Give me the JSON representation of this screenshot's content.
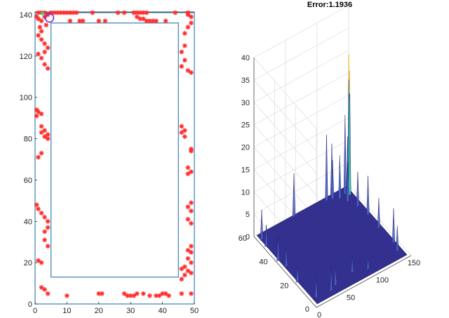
{
  "chart_data": [
    {
      "type": "scatter",
      "title": "",
      "xlabel": "",
      "ylabel": "",
      "xlim": [
        0,
        50
      ],
      "ylim": [
        0,
        140
      ],
      "xticks": [
        "0",
        "10",
        "20",
        "30",
        "40",
        "50"
      ],
      "yticks": [
        "0",
        "20",
        "40",
        "60",
        "80",
        "100",
        "120",
        "140"
      ],
      "grid": false,
      "outer_boundary": {
        "x": [
          0,
          50
        ],
        "y": [
          0,
          141
        ]
      },
      "inner_boundary": {
        "x": [
          5,
          45
        ],
        "y": [
          13,
          136
        ]
      },
      "colors": {
        "boundary": "#3a7fb4",
        "marker": "#ff2a2a",
        "estimate_circle": "#7a2bd6",
        "estimate_dot": "#2ee06a"
      },
      "estimate": {
        "x": 4.5,
        "y": 138.5
      },
      "particles": [
        [
          1,
          141
        ],
        [
          2,
          141
        ],
        [
          3,
          141
        ],
        [
          4,
          140
        ],
        [
          5,
          141
        ],
        [
          6,
          141
        ],
        [
          7,
          141
        ],
        [
          8,
          141
        ],
        [
          9,
          141
        ],
        [
          10,
          141
        ],
        [
          11,
          141
        ],
        [
          12,
          141
        ],
        [
          13,
          141
        ],
        [
          18,
          141
        ],
        [
          26,
          141
        ],
        [
          28,
          141
        ],
        [
          31,
          141
        ],
        [
          32,
          141
        ],
        [
          33,
          141
        ],
        [
          34,
          141
        ],
        [
          35,
          141
        ],
        [
          44,
          141
        ],
        [
          48,
          141
        ],
        [
          11,
          137
        ],
        [
          14,
          137
        ],
        [
          15,
          137
        ],
        [
          20,
          137
        ],
        [
          22,
          137
        ],
        [
          32,
          139
        ],
        [
          33,
          138
        ],
        [
          34,
          138
        ],
        [
          35,
          137
        ],
        [
          36,
          137
        ],
        [
          37,
          137
        ],
        [
          38,
          137
        ],
        [
          41,
          137
        ],
        [
          0.5,
          139
        ],
        [
          1,
          138
        ],
        [
          2,
          137
        ],
        [
          3,
          139
        ],
        [
          1.5,
          134
        ],
        [
          3.5,
          135
        ],
        [
          2,
          132
        ],
        [
          1,
          130
        ],
        [
          2,
          128
        ],
        [
          3,
          126
        ],
        [
          4,
          124
        ],
        [
          3,
          122
        ],
        [
          1,
          121
        ],
        [
          2,
          119
        ],
        [
          3,
          116
        ],
        [
          4,
          114
        ],
        [
          0.5,
          94
        ],
        [
          1,
          93
        ],
        [
          2,
          92
        ],
        [
          0.5,
          91
        ],
        [
          2,
          86
        ],
        [
          3,
          84
        ],
        [
          4,
          82
        ],
        [
          3,
          81
        ],
        [
          2,
          83
        ],
        [
          4,
          80
        ],
        [
          2,
          73
        ],
        [
          1,
          71
        ],
        [
          0.5,
          48
        ],
        [
          1,
          46
        ],
        [
          2,
          44
        ],
        [
          3,
          42
        ],
        [
          4,
          40
        ],
        [
          4,
          37
        ],
        [
          3,
          35
        ],
        [
          3,
          31
        ],
        [
          4,
          28
        ],
        [
          1,
          21
        ],
        [
          2,
          20
        ],
        [
          2,
          8
        ],
        [
          3,
          7
        ],
        [
          4,
          5
        ],
        [
          10,
          4
        ],
        [
          20,
          5
        ],
        [
          21,
          5
        ],
        [
          28,
          5
        ],
        [
          29,
          4
        ],
        [
          30,
          4
        ],
        [
          31,
          4
        ],
        [
          32,
          5
        ],
        [
          34,
          5
        ],
        [
          36,
          4
        ],
        [
          38,
          4
        ],
        [
          39,
          4
        ],
        [
          40,
          5
        ],
        [
          41,
          5
        ],
        [
          42,
          4
        ],
        [
          46,
          5
        ],
        [
          49,
          5
        ],
        [
          48,
          140
        ],
        [
          49,
          139
        ],
        [
          49,
          136
        ],
        [
          48,
          134
        ],
        [
          47,
          131
        ],
        [
          47,
          125
        ],
        [
          46,
          122
        ],
        [
          47,
          118
        ],
        [
          46,
          115
        ],
        [
          48,
          113
        ],
        [
          49,
          112
        ],
        [
          46,
          86
        ],
        [
          47,
          84
        ],
        [
          46,
          83
        ],
        [
          47,
          81
        ],
        [
          49,
          75
        ],
        [
          49,
          74
        ],
        [
          48,
          66
        ],
        [
          49,
          64
        ],
        [
          48,
          63
        ],
        [
          49,
          49
        ],
        [
          48,
          47
        ],
        [
          49,
          45
        ],
        [
          48,
          41
        ],
        [
          49,
          39
        ],
        [
          49,
          28
        ],
        [
          48,
          26
        ],
        [
          49,
          25
        ],
        [
          48,
          22
        ],
        [
          49,
          20
        ],
        [
          47,
          18
        ],
        [
          46,
          17
        ],
        [
          48,
          16
        ],
        [
          49,
          15
        ],
        [
          47,
          14
        ],
        [
          46,
          12
        ]
      ]
    },
    {
      "type": "surface",
      "title": "Error:1.1936",
      "xlabel": "",
      "ylabel": "",
      "zlabel": "",
      "xlim": [
        0,
        150
      ],
      "ylim": [
        0,
        60
      ],
      "zlim": [
        0,
        40
      ],
      "xticks": [
        "0",
        "50",
        "100",
        "150"
      ],
      "yticks": [
        "0",
        "20",
        "40",
        "60"
      ],
      "zticks": [
        "0",
        "5",
        "10",
        "15",
        "20",
        "25",
        "30",
        "35",
        "40"
      ],
      "grid": true,
      "colors": {
        "surface": "#33308f",
        "low_peak": "#4a63c8",
        "high_peak": "#3fd1b8",
        "peak_tip": "#f2c230"
      },
      "peaks": [
        {
          "x": 142,
          "y": 55,
          "z": 31
        },
        {
          "x": 140,
          "y": 53,
          "z": 28
        },
        {
          "x": 144,
          "y": 56,
          "z": 22
        },
        {
          "x": 136,
          "y": 55,
          "z": 18
        },
        {
          "x": 135,
          "y": 52,
          "z": 14
        },
        {
          "x": 120,
          "y": 58,
          "z": 12
        },
        {
          "x": 110,
          "y": 57,
          "z": 15
        },
        {
          "x": 118,
          "y": 56,
          "z": 9
        },
        {
          "x": 126,
          "y": 54,
          "z": 10
        },
        {
          "x": 132,
          "y": 50,
          "z": 9
        },
        {
          "x": 138,
          "y": 44,
          "z": 8
        },
        {
          "x": 141,
          "y": 36,
          "z": 9
        },
        {
          "x": 140,
          "y": 25,
          "z": 7
        },
        {
          "x": 142,
          "y": 12,
          "z": 8
        },
        {
          "x": 138,
          "y": 6,
          "z": 6
        },
        {
          "x": 60,
          "y": 58,
          "z": 10
        },
        {
          "x": 4,
          "y": 55,
          "z": 7
        },
        {
          "x": 3,
          "y": 50,
          "z": 5
        },
        {
          "x": 2,
          "y": 38,
          "z": 6
        },
        {
          "x": 5,
          "y": 32,
          "z": 5
        },
        {
          "x": 3,
          "y": 20,
          "z": 4
        },
        {
          "x": 8,
          "y": 5,
          "z": 5
        },
        {
          "x": 30,
          "y": 4,
          "z": 6
        },
        {
          "x": 40,
          "y": 6,
          "z": 5
        },
        {
          "x": 70,
          "y": 8,
          "z": 4
        },
        {
          "x": 90,
          "y": 5,
          "z": 3
        }
      ]
    }
  ]
}
